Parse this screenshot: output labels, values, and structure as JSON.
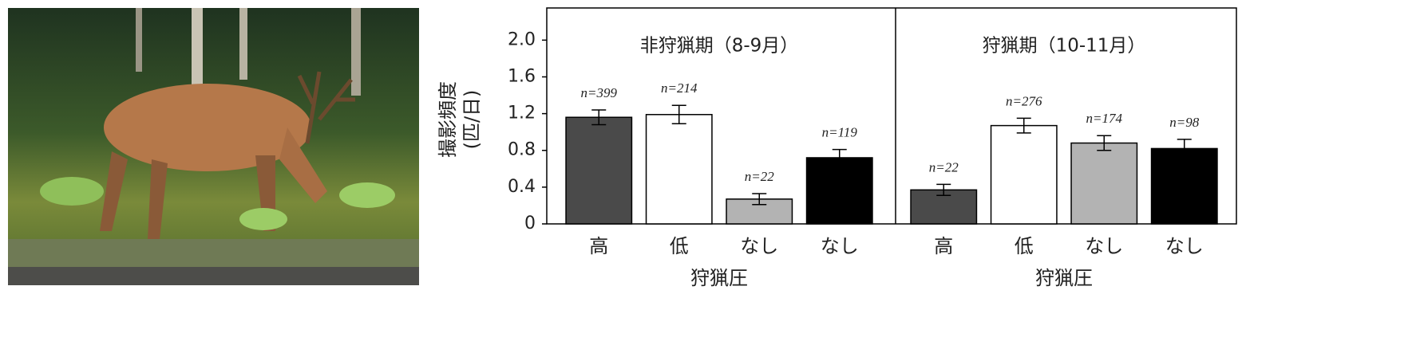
{
  "chart_data": {
    "type": "bar",
    "ylabel": [
      "撮影頻度",
      "(匹/日)"
    ],
    "ylim": [
      0,
      2.35
    ],
    "yticks": [
      0,
      0.4,
      0.8,
      1.2,
      1.6,
      {
        "value": 2,
        "label": "2.0"
      }
    ],
    "panels": [
      {
        "title": "非狩猟期（8-9月）",
        "xlabel": "狩猟圧",
        "categories": [
          "高",
          "低",
          "なし",
          "なし"
        ],
        "values": [
          1.16,
          1.19,
          0.27,
          0.72
        ],
        "errors": [
          0.08,
          0.1,
          0.06,
          0.09
        ],
        "colors": [
          "#4a4a4a",
          "#ffffff",
          "#b3b3b3",
          "#000000"
        ],
        "annotations": [
          "n=399",
          "n=214",
          "n=22",
          "n=119"
        ]
      },
      {
        "title": "狩猟期（10-11月）",
        "xlabel": "狩猟圧",
        "categories": [
          "高",
          "低",
          "なし",
          "なし"
        ],
        "values": [
          0.37,
          1.07,
          0.88,
          0.82
        ],
        "errors": [
          0.06,
          0.08,
          0.08,
          0.1
        ],
        "colors": [
          "#4a4a4a",
          "#ffffff",
          "#b3b3b3",
          "#000000"
        ],
        "annotations": [
          "n=22",
          "n=276",
          "n=174",
          "n=98"
        ]
      }
    ]
  }
}
